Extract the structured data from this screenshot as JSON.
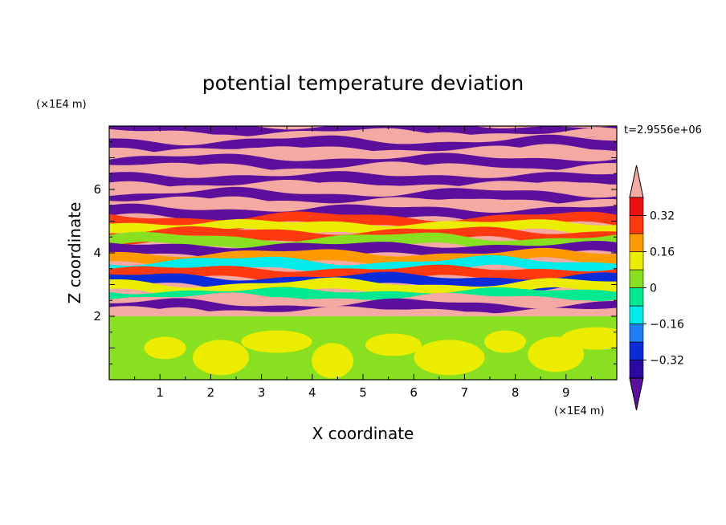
{
  "chart_data": {
    "type": "heatmap",
    "title": "potential temperature deviation",
    "xlabel": "X coordinate",
    "ylabel": "Z coordinate",
    "x_unit": "(×1E4 m)",
    "y_unit": "(×1E4 m)",
    "time_label": "t=2.9556e+06",
    "xlim": [
      0,
      10
    ],
    "ylim": [
      0,
      8
    ],
    "x_ticks": [
      "1",
      "2",
      "3",
      "4",
      "5",
      "6",
      "7",
      "8",
      "9"
    ],
    "y_ticks": [
      "2",
      "4",
      "6"
    ],
    "colorbar": {
      "tick_labels": [
        "0.32",
        "0.16",
        "0",
        "−0.16",
        "−0.32"
      ],
      "tick_values": [
        0.32,
        0.16,
        0,
        -0.16,
        -0.32
      ],
      "levels": [
        -0.4,
        -0.32,
        -0.24,
        -0.16,
        -0.08,
        0,
        0.08,
        0.16,
        0.24,
        0.32,
        0.4
      ],
      "colors": [
        "#5b0f9c",
        "#2a0aa0",
        "#0a2bd8",
        "#1e7ff2",
        "#00ecec",
        "#00e890",
        "#88e020",
        "#ecec00",
        "#ff9a00",
        "#ff3a10",
        "#e81010",
        "#f4a9a3"
      ],
      "extend": "both"
    },
    "bands": [
      {
        "z": 7.85,
        "v": -0.45
      },
      {
        "z": 7.65,
        "v": 0.45
      },
      {
        "z": 7.4,
        "v": -0.45
      },
      {
        "z": 7.1,
        "v": 0.45
      },
      {
        "z": 6.85,
        "v": -0.45
      },
      {
        "z": 6.55,
        "v": 0.45
      },
      {
        "z": 6.3,
        "v": -0.45
      },
      {
        "z": 6.0,
        "v": 0.45
      },
      {
        "z": 5.75,
        "v": -0.45
      },
      {
        "z": 5.5,
        "v": 0.45
      },
      {
        "z": 5.25,
        "v": -0.45
      },
      {
        "z": 5.0,
        "v": 0.3
      },
      {
        "z": 4.8,
        "v": 0.1
      },
      {
        "z": 4.55,
        "v": 0.3
      },
      {
        "z": 4.35,
        "v": 0.0
      },
      {
        "z": 4.1,
        "v": -0.45
      },
      {
        "z": 3.85,
        "v": 0.2
      },
      {
        "z": 3.6,
        "v": -0.1
      },
      {
        "z": 3.35,
        "v": 0.3
      },
      {
        "z": 3.1,
        "v": -0.3
      },
      {
        "z": 2.9,
        "v": 0.15
      },
      {
        "z": 2.65,
        "v": -0.05
      },
      {
        "z": 2.45,
        "v": 0.45
      },
      {
        "z": 2.25,
        "v": -0.45
      },
      {
        "z": 2.05,
        "v": 0.45
      }
    ],
    "boundary_layer_top": 2.0,
    "boundary_layer_values": [
      0.04,
      0.1
    ]
  }
}
